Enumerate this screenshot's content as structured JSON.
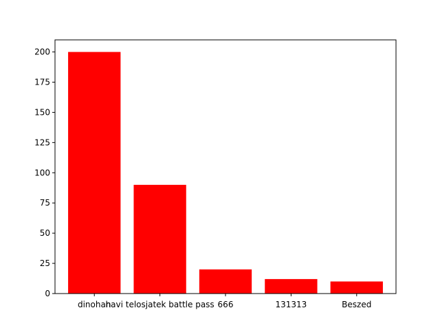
{
  "chart_data": {
    "type": "bar",
    "categories": [
      "dinohan",
      "havi telosjatek battle pass",
      "666",
      "131313",
      "Beszed"
    ],
    "values": [
      200,
      90,
      20,
      12,
      10
    ],
    "title": "",
    "xlabel": "",
    "ylabel": "",
    "ylim": [
      0,
      210
    ],
    "yticks": [
      0,
      25,
      50,
      75,
      100,
      125,
      150,
      175,
      200
    ],
    "grid": false,
    "bar_color": "#ff0000",
    "axis_color": "#000000"
  }
}
